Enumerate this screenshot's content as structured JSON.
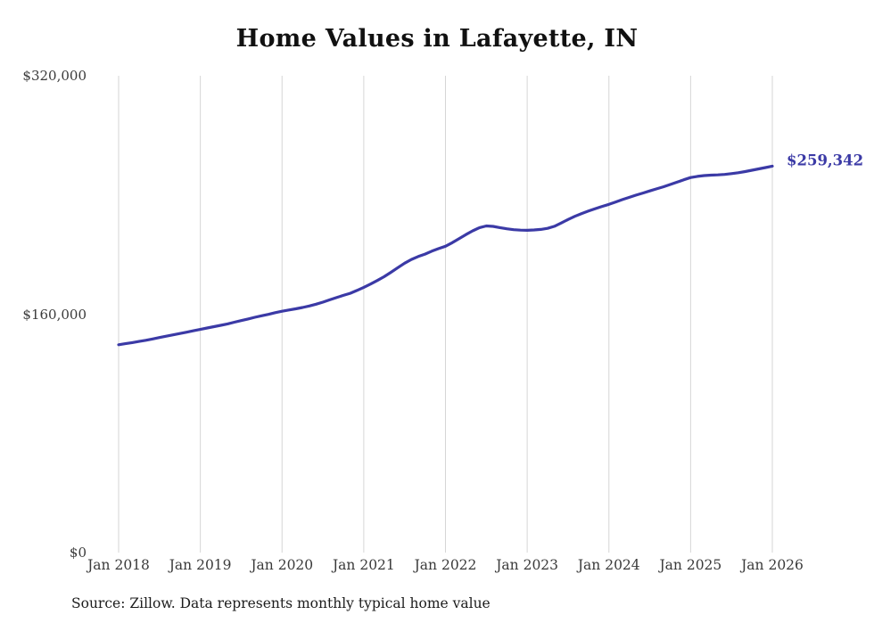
{
  "title": "Home Values in Lafayette, IN",
  "source_note": "Source: Zillow. Data represents monthly typical home value",
  "chart_data": {
    "type": "line",
    "title": "Home Values in Lafayette, IN",
    "xlabel": "",
    "ylabel": "",
    "ylim": [
      0,
      320000
    ],
    "y_tick_labels": [
      "$0",
      "$160,000",
      "$320,000"
    ],
    "y_tick_values": [
      0,
      160000,
      320000
    ],
    "x_tick_labels": [
      "Jan 2018",
      "Jan 2019",
      "Jan 2020",
      "Jan 2021",
      "Jan 2022",
      "Jan 2023",
      "Jan 2024",
      "Jan 2025",
      "Jan 2026"
    ],
    "x_start": "Jan 2018",
    "x_interval": "monthly",
    "grid": "vertical-only",
    "legend": "none",
    "line_color": "#3b3aa6",
    "grid_color": "#d6d6d6",
    "end_label": "$259,342",
    "end_value": 259342,
    "series": [
      {
        "name": "Typical home value",
        "values": [
          139500,
          140200,
          140900,
          141700,
          142500,
          143400,
          144300,
          145200,
          146100,
          147000,
          147900,
          148900,
          149800,
          150700,
          151600,
          152500,
          153500,
          154600,
          155700,
          156800,
          157900,
          158900,
          159900,
          161000,
          162000,
          162800,
          163600,
          164500,
          165500,
          166700,
          168100,
          169600,
          171100,
          172600,
          174000,
          175900,
          178000,
          180200,
          182600,
          185200,
          188100,
          191200,
          194200,
          196700,
          198700,
          200300,
          202300,
          204000,
          205600,
          208000,
          210700,
          213400,
          215900,
          218100,
          219200,
          218900,
          218100,
          217300,
          216700,
          216400,
          216300,
          216500,
          216900,
          217600,
          219000,
          221200,
          223500,
          225700,
          227500,
          229200,
          230800,
          232300,
          233700,
          235300,
          236900,
          238400,
          239900,
          241300,
          242700,
          244100,
          245500,
          247000,
          248600,
          250200,
          251700,
          252500,
          253000,
          253300,
          253500,
          253800,
          254300,
          254900,
          255700,
          256600,
          257500,
          258400,
          259342
        ]
      }
    ]
  }
}
